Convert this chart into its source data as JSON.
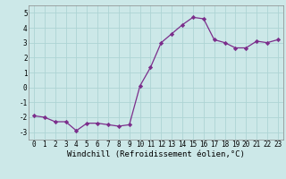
{
  "x": [
    0,
    1,
    2,
    3,
    4,
    5,
    6,
    7,
    8,
    9,
    10,
    11,
    12,
    13,
    14,
    15,
    16,
    17,
    18,
    19,
    20,
    21,
    22,
    23
  ],
  "y": [
    -1.9,
    -2.0,
    -2.3,
    -2.3,
    -2.9,
    -2.4,
    -2.4,
    -2.5,
    -2.6,
    -2.5,
    0.1,
    1.35,
    3.0,
    3.6,
    4.2,
    4.7,
    4.6,
    3.2,
    3.0,
    2.65,
    2.65,
    3.1,
    3.0,
    3.2
  ],
  "xlim": [
    -0.5,
    23.5
  ],
  "ylim": [
    -3.5,
    5.5
  ],
  "yticks": [
    -3,
    -2,
    -1,
    0,
    1,
    2,
    3,
    4,
    5
  ],
  "xticks": [
    0,
    1,
    2,
    3,
    4,
    5,
    6,
    7,
    8,
    9,
    10,
    11,
    12,
    13,
    14,
    15,
    16,
    17,
    18,
    19,
    20,
    21,
    22,
    23
  ],
  "xlabel": "Windchill (Refroidissement éolien,°C)",
  "line_color": "#7b2d8b",
  "marker": "D",
  "marker_size": 2.2,
  "bg_color": "#cce8e8",
  "grid_color": "#aed4d4",
  "tick_label_fontsize": 5.5,
  "xlabel_fontsize": 6.5
}
